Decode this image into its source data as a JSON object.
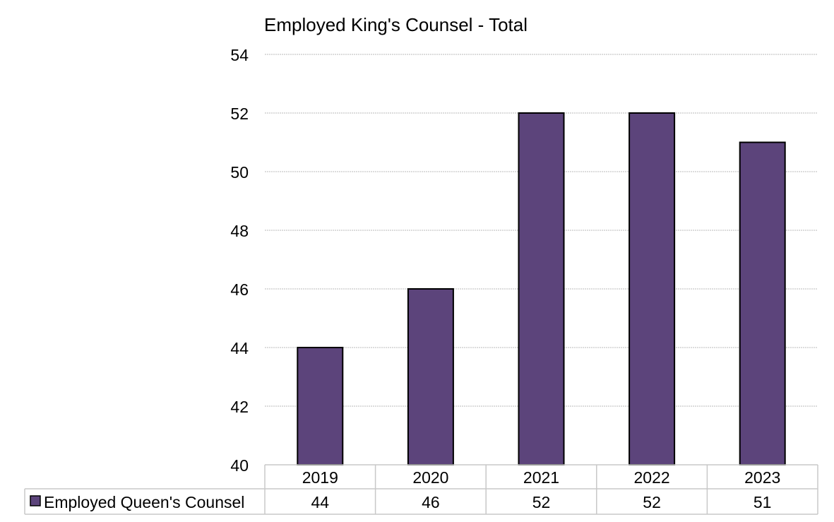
{
  "chart_data": {
    "type": "bar",
    "title": "Employed King's Counsel - Total",
    "categories": [
      "2019",
      "2020",
      "2021",
      "2022",
      "2023"
    ],
    "series": [
      {
        "name": "Employed Queen's Counsel",
        "values": [
          44,
          46,
          52,
          52,
          51
        ],
        "color": "#5c447b"
      }
    ],
    "ylim": [
      40,
      54
    ],
    "yticks": [
      40,
      42,
      44,
      46,
      48,
      50,
      52,
      54
    ],
    "xlabel": "",
    "ylabel": "",
    "grid": true,
    "legend": "data-table-left",
    "data_table": true
  }
}
